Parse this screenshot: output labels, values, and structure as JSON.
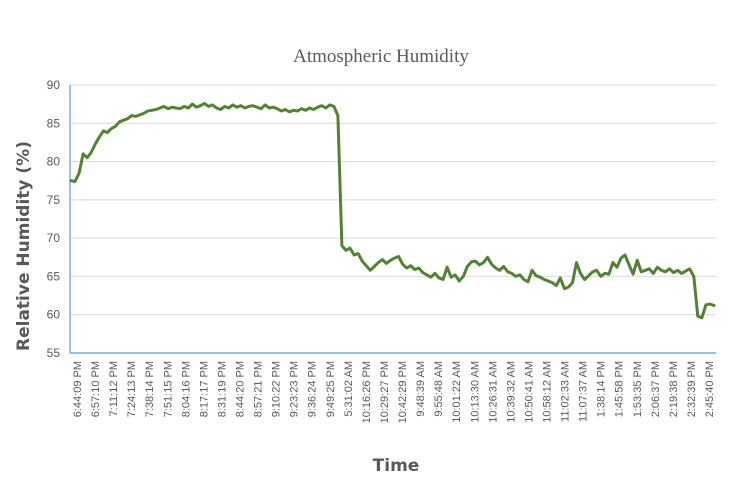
{
  "chart_data": {
    "type": "line",
    "title": "Atmospheric Humidity",
    "xlabel": "Time",
    "ylabel": "Relative Humidity (%)",
    "ylim": [
      55,
      90
    ],
    "yticks": [
      55,
      60,
      65,
      70,
      75,
      80,
      85,
      90
    ],
    "grid": true,
    "legend": "none",
    "series_color": "#548235",
    "x_tick_labels": [
      "6:44:09 PM",
      "6:57:10 PM",
      "7:11:12 PM",
      "7:24:13 PM",
      "7:38:14 PM",
      "7:51:15 PM",
      "8:04:16 PM",
      "8:17:17 PM",
      "8:31:19 PM",
      "8:44:20 PM",
      "8:57:21 PM",
      "9:10:22 PM",
      "9:23:23 PM",
      "9:36:24 PM",
      "9:49:25 PM",
      "5:31:02 AM",
      "10:16:26 PM",
      "10:29:27 PM",
      "10:42:29 PM",
      "9:48:39 AM",
      "9:55:48 AM",
      "10:01:22 AM",
      "10:13:30 AM",
      "10:26:31 AM",
      "10:39:32 AM",
      "10:50:41 AM",
      "10:58:12 AM",
      "11:02:33 AM",
      "11:07:37 AM",
      "1:38:14 PM",
      "1:45:58 PM",
      "1:53:35 PM",
      "2:06:37 PM",
      "2:19:38 PM",
      "2:32:39 PM",
      "2:45:40 PM"
    ],
    "series": [
      {
        "values": [
          77.5,
          77.4,
          78.5,
          81.0,
          80.5,
          81.2,
          82.3,
          83.2,
          84.0,
          83.8,
          84.3,
          84.6,
          85.2,
          85.4,
          85.6,
          86.0,
          85.9,
          86.1,
          86.3,
          86.6,
          86.7,
          86.8,
          87.0,
          87.2,
          86.9,
          87.1,
          87.0,
          86.9,
          87.2,
          87.0,
          87.5,
          87.1,
          87.3,
          87.6,
          87.2,
          87.4,
          87.0,
          86.8,
          87.2,
          87.0,
          87.4,
          87.1,
          87.3,
          87.0,
          87.2,
          87.3,
          87.1,
          86.9,
          87.4,
          87.0,
          87.1,
          86.9,
          86.6,
          86.8,
          86.5,
          86.7,
          86.6,
          86.9,
          86.7,
          87.0,
          86.8,
          87.1,
          87.3,
          87.0,
          87.4,
          87.2,
          86.0,
          69.0,
          68.4,
          68.7,
          67.8,
          68.0,
          67.0,
          66.4,
          65.8,
          66.3,
          66.8,
          67.2,
          66.7,
          67.1,
          67.4,
          67.6,
          66.6,
          66.1,
          66.4,
          65.9,
          66.1,
          65.5,
          65.2,
          64.9,
          65.4,
          64.8,
          64.6,
          66.2,
          64.9,
          65.2,
          64.4,
          65.0,
          66.3,
          66.9,
          67.0,
          66.5,
          66.8,
          67.5,
          66.6,
          66.1,
          65.8,
          66.3,
          65.6,
          65.4,
          65.0,
          65.2,
          64.6,
          64.3,
          65.8,
          65.1,
          64.9,
          64.6,
          64.4,
          64.2,
          63.8,
          64.8,
          63.4,
          63.6,
          64.2,
          66.8,
          65.4,
          64.6,
          65.1,
          65.6,
          65.8,
          65.0,
          65.4,
          65.3,
          66.8,
          66.2,
          67.4,
          67.8,
          66.5,
          65.3,
          67.1,
          65.6,
          65.8,
          66.0,
          65.4,
          66.2,
          65.8,
          65.6,
          66.0,
          65.5,
          65.8,
          65.4,
          65.7,
          66.0,
          65.0,
          59.8,
          59.6,
          61.3,
          61.4,
          61.2
        ]
      }
    ]
  }
}
